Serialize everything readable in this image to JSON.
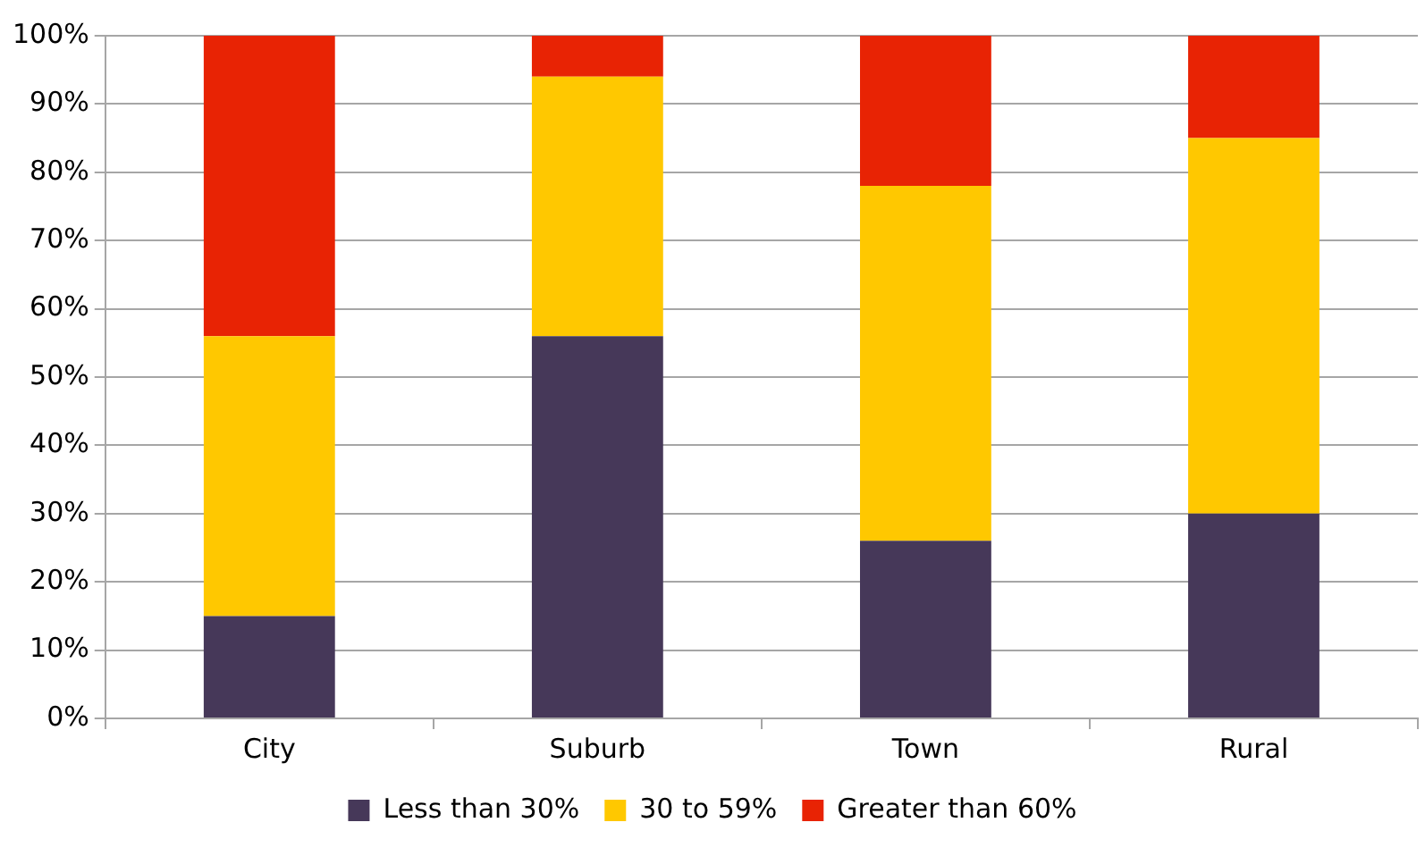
{
  "chart_data": {
    "type": "bar",
    "stacked": true,
    "categories": [
      "City",
      "Suburb",
      "Town",
      "Rural"
    ],
    "series": [
      {
        "name": "Less than 30%",
        "color": "#463859",
        "values": [
          15,
          56,
          26,
          30
        ]
      },
      {
        "name": "30 to 59%",
        "color": "#ffc800",
        "values": [
          41,
          38,
          52,
          55
        ]
      },
      {
        "name": "Greater than 60%",
        "color": "#e82304",
        "values": [
          44,
          6,
          22,
          15
        ]
      }
    ],
    "ylim": [
      0,
      100
    ],
    "yticks": [
      {
        "value": 0,
        "label": "0%"
      },
      {
        "value": 10,
        "label": "10%"
      },
      {
        "value": 20,
        "label": "20%"
      },
      {
        "value": 30,
        "label": "30%"
      },
      {
        "value": 40,
        "label": "40%"
      },
      {
        "value": 50,
        "label": "50%"
      },
      {
        "value": 60,
        "label": "60%"
      },
      {
        "value": 70,
        "label": "70%"
      },
      {
        "value": 80,
        "label": "80%"
      },
      {
        "value": 90,
        "label": "90%"
      },
      {
        "value": 100,
        "label": "100%"
      }
    ],
    "grid": "y",
    "legend": "bottom"
  }
}
